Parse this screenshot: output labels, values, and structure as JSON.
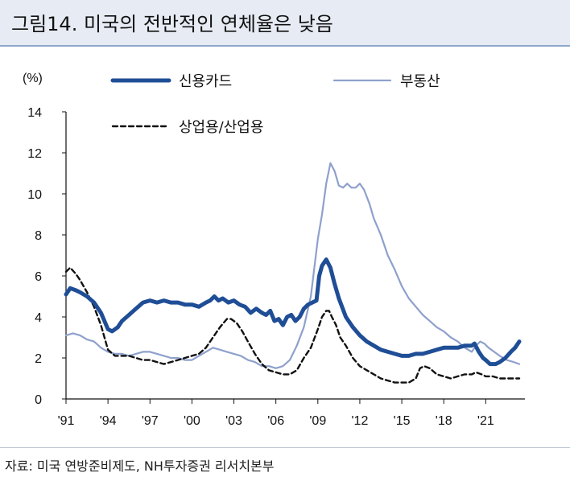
{
  "header": {
    "title": "그림14. 미국의 전반적인 연체율은 낮음"
  },
  "source": "자료: 미국 연방준비제도, NH투자증권 리서치본부",
  "chart_data": {
    "type": "line",
    "ylabel": "(%)",
    "ylim": [
      0,
      14
    ],
    "yticks": [
      0,
      2,
      4,
      6,
      8,
      10,
      12,
      14
    ],
    "xlim": [
      1991,
      2023.8
    ],
    "xticks": [
      {
        "v": 1991,
        "label": "'91"
      },
      {
        "v": 1994,
        "label": "'94"
      },
      {
        "v": 1997,
        "label": "'97"
      },
      {
        "v": 2000,
        "label": "'00"
      },
      {
        "v": 2003,
        "label": "'03"
      },
      {
        "v": 2006,
        "label": "'06"
      },
      {
        "v": 2009,
        "label": "'09"
      },
      {
        "v": 2012,
        "label": "'12"
      },
      {
        "v": 2015,
        "label": "'15"
      },
      {
        "v": 2018,
        "label": "'18"
      },
      {
        "v": 2021,
        "label": "'21"
      }
    ],
    "grid": false,
    "legend": "top",
    "series": [
      {
        "name": "신용카드",
        "color": "#1f4e96",
        "style": "solid-thick",
        "x": [
          1991.0,
          1991.3,
          1991.7,
          1992.0,
          1992.5,
          1993.0,
          1993.5,
          1994.0,
          1994.3,
          1994.7,
          1995.0,
          1995.5,
          1996.0,
          1996.5,
          1997.0,
          1997.5,
          1998.0,
          1998.5,
          1999.0,
          1999.5,
          2000.0,
          2000.5,
          2001.0,
          2001.3,
          2001.6,
          2001.9,
          2002.2,
          2002.6,
          2003.0,
          2003.4,
          2003.8,
          2004.2,
          2004.6,
          2005.0,
          2005.3,
          2005.6,
          2005.9,
          2006.2,
          2006.5,
          2006.8,
          2007.1,
          2007.4,
          2007.7,
          2008.0,
          2008.3,
          2008.6,
          2008.9,
          2009.1,
          2009.3,
          2009.6,
          2009.9,
          2010.2,
          2010.5,
          2011.0,
          2011.5,
          2012.0,
          2012.5,
          2013.0,
          2013.5,
          2014.0,
          2014.5,
          2015.0,
          2015.5,
          2016.0,
          2016.5,
          2017.0,
          2017.5,
          2018.0,
          2018.5,
          2019.0,
          2019.5,
          2020.0,
          2020.2,
          2020.5,
          2020.8,
          2021.0,
          2021.3,
          2021.7,
          2022.0,
          2022.4,
          2022.8,
          2023.1,
          2023.4
        ],
        "y": [
          5.1,
          5.4,
          5.3,
          5.2,
          5.0,
          4.7,
          4.2,
          3.4,
          3.3,
          3.5,
          3.8,
          4.1,
          4.4,
          4.7,
          4.8,
          4.7,
          4.8,
          4.7,
          4.7,
          4.6,
          4.6,
          4.5,
          4.7,
          4.8,
          5.0,
          4.8,
          4.9,
          4.7,
          4.8,
          4.6,
          4.5,
          4.2,
          4.4,
          4.2,
          4.1,
          4.3,
          3.8,
          3.9,
          3.6,
          4.0,
          4.1,
          3.8,
          4.0,
          4.4,
          4.6,
          4.7,
          4.8,
          6.0,
          6.5,
          6.8,
          6.4,
          5.6,
          4.9,
          4.0,
          3.5,
          3.1,
          2.8,
          2.6,
          2.4,
          2.3,
          2.2,
          2.1,
          2.1,
          2.2,
          2.2,
          2.3,
          2.4,
          2.5,
          2.5,
          2.5,
          2.6,
          2.6,
          2.7,
          2.3,
          2.0,
          1.9,
          1.7,
          1.7,
          1.8,
          2.0,
          2.3,
          2.5,
          2.8
        ]
      },
      {
        "name": "부동산",
        "color": "#8ea0cc",
        "style": "solid-thin",
        "x": [
          1991.0,
          1991.5,
          1992.0,
          1992.5,
          1993.0,
          1993.5,
          1994.0,
          1994.5,
          1995.0,
          1995.5,
          1996.0,
          1996.5,
          1997.0,
          1997.5,
          1998.0,
          1998.5,
          1999.0,
          1999.5,
          2000.0,
          2000.5,
          2001.0,
          2001.5,
          2002.0,
          2002.5,
          2003.0,
          2003.5,
          2004.0,
          2004.5,
          2005.0,
          2005.5,
          2006.0,
          2006.5,
          2007.0,
          2007.5,
          2008.0,
          2008.5,
          2009.0,
          2009.3,
          2009.6,
          2009.9,
          2010.2,
          2010.5,
          2010.8,
          2011.1,
          2011.4,
          2011.7,
          2012.0,
          2012.3,
          2012.7,
          2013.0,
          2013.5,
          2014.0,
          2014.5,
          2015.0,
          2015.5,
          2016.0,
          2016.5,
          2017.0,
          2017.5,
          2018.0,
          2018.5,
          2019.0,
          2019.5,
          2020.0,
          2020.3,
          2020.6,
          2020.9,
          2021.2,
          2021.6,
          2022.0,
          2022.5,
          2023.0,
          2023.4
        ],
        "y": [
          3.1,
          3.2,
          3.1,
          2.9,
          2.8,
          2.5,
          2.3,
          2.2,
          2.2,
          2.1,
          2.2,
          2.3,
          2.3,
          2.2,
          2.1,
          2.0,
          2.0,
          1.9,
          1.9,
          2.1,
          2.3,
          2.5,
          2.4,
          2.3,
          2.2,
          2.1,
          1.9,
          1.8,
          1.6,
          1.6,
          1.5,
          1.6,
          1.9,
          2.6,
          3.5,
          5.0,
          7.8,
          9.0,
          10.5,
          11.5,
          11.1,
          10.4,
          10.3,
          10.5,
          10.3,
          10.3,
          10.5,
          10.2,
          9.5,
          8.8,
          8.0,
          7.0,
          6.3,
          5.5,
          4.9,
          4.5,
          4.1,
          3.8,
          3.5,
          3.3,
          3.0,
          2.8,
          2.5,
          2.3,
          2.6,
          2.8,
          2.7,
          2.5,
          2.3,
          2.1,
          1.9,
          1.8,
          1.7
        ]
      },
      {
        "name": "상업용/산업용",
        "color": "#111111",
        "style": "dashed",
        "x": [
          1991.0,
          1991.3,
          1991.7,
          1992.0,
          1992.5,
          1993.0,
          1993.5,
          1994.0,
          1994.5,
          1995.0,
          1995.5,
          1996.0,
          1996.5,
          1997.0,
          1997.5,
          1998.0,
          1998.5,
          1999.0,
          1999.5,
          2000.0,
          2000.5,
          2001.0,
          2001.5,
          2002.0,
          2002.5,
          2002.8,
          2003.2,
          2003.6,
          2004.0,
          2004.5,
          2005.0,
          2005.5,
          2006.0,
          2006.5,
          2007.0,
          2007.5,
          2008.0,
          2008.5,
          2009.0,
          2009.3,
          2009.6,
          2009.8,
          2010.0,
          2010.3,
          2010.6,
          2011.0,
          2011.5,
          2012.0,
          2012.5,
          2013.0,
          2013.5,
          2014.0,
          2014.5,
          2015.0,
          2015.5,
          2016.0,
          2016.3,
          2016.6,
          2017.0,
          2017.5,
          2018.0,
          2018.5,
          2019.0,
          2019.5,
          2020.0,
          2020.3,
          2020.7,
          2021.0,
          2021.5,
          2022.0,
          2022.5,
          2023.0,
          2023.4
        ],
        "y": [
          6.2,
          6.4,
          6.1,
          5.8,
          5.2,
          4.5,
          3.6,
          2.4,
          2.1,
          2.1,
          2.1,
          2.0,
          1.9,
          1.9,
          1.8,
          1.7,
          1.8,
          1.9,
          2.0,
          2.1,
          2.2,
          2.5,
          3.0,
          3.5,
          3.9,
          3.9,
          3.7,
          3.3,
          2.8,
          2.2,
          1.7,
          1.4,
          1.3,
          1.2,
          1.2,
          1.4,
          2.0,
          2.5,
          3.4,
          4.0,
          4.3,
          4.3,
          4.0,
          3.6,
          3.0,
          2.6,
          2.0,
          1.6,
          1.4,
          1.2,
          1.0,
          0.9,
          0.8,
          0.8,
          0.8,
          1.0,
          1.5,
          1.6,
          1.5,
          1.2,
          1.1,
          1.0,
          1.1,
          1.2,
          1.2,
          1.3,
          1.2,
          1.1,
          1.1,
          1.0,
          1.0,
          1.0,
          1.0
        ]
      }
    ]
  }
}
